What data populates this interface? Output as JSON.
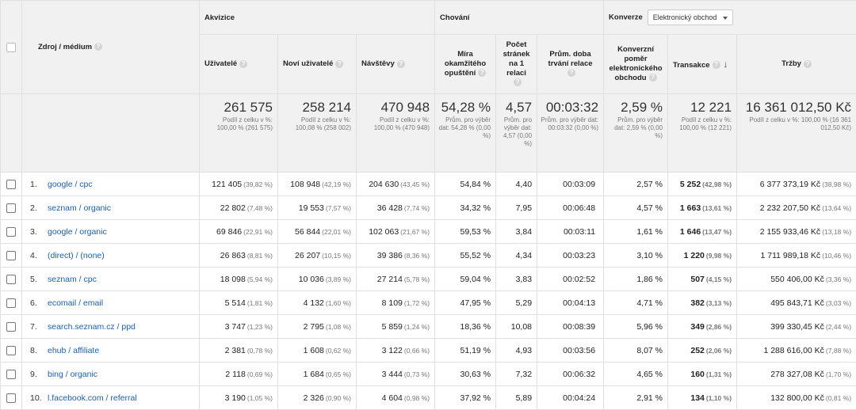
{
  "groups": {
    "acquisition": "Akvizice",
    "behavior": "Chování",
    "conversion": "Konverze",
    "conversion_select": "Elektronický obchod"
  },
  "headers": {
    "source": "Zdroj / médium",
    "users": "Uživatelé",
    "new_users": "Noví uživatelé",
    "sessions": "Návštěvy",
    "bounce": "Míra okamžitého opuštění",
    "pages": "Počet stránek na 1 relaci",
    "duration": "Prům. doba trvání relace",
    "conv_rate": "Konverzní poměr elektronického obchodu",
    "transactions": "Transakce",
    "revenue": "Tržby"
  },
  "totals": {
    "users": {
      "big": "261 575",
      "sub": "Podíl z celku v %: 100,00 % (261 575)"
    },
    "new_users": {
      "big": "258 214",
      "sub": "Podíl z celku v %: 100,08 % (258 002)"
    },
    "sessions": {
      "big": "470 948",
      "sub": "Podíl z celku v %: 100,00 % (470 948)"
    },
    "bounce": {
      "big": "54,28 %",
      "sub": "Prům. pro výběr dat: 54,28 % (0,00 %)"
    },
    "pages": {
      "big": "4,57",
      "sub": "Prům. pro výběr dat: 4,57 (0,00 %)"
    },
    "duration": {
      "big": "00:03:32",
      "sub": "Prům. pro výběr dat: 00:03:32 (0,00 %)"
    },
    "conv_rate": {
      "big": "2,59 %",
      "sub": "Prům. pro výběr dat: 2,59 % (0,00 %)"
    },
    "transactions": {
      "big": "12 221",
      "sub": "Podíl z celku v %: 100,00 % (12 221)"
    },
    "revenue": {
      "big": "16 361 012,50 Kč",
      "sub": "Podíl z celku v %: 100,00 % (16 361 012,50 Kč)"
    }
  },
  "rows": [
    {
      "idx": "1.",
      "source": "google / cpc",
      "users": "121 405",
      "users_pct": "(39,82 %)",
      "new_users": "108 948",
      "new_users_pct": "(42,19 %)",
      "sessions": "204 630",
      "sessions_pct": "(43,45 %)",
      "bounce": "54,84 %",
      "pages": "4,40",
      "duration": "00:03:09",
      "conv_rate": "2,57 %",
      "transactions": "5 252",
      "transactions_pct": "(42,98 %)",
      "revenue": "6 377 373,19 Kč",
      "revenue_pct": "(38,98 %)"
    },
    {
      "idx": "2.",
      "source": "seznam / organic",
      "users": "22 802",
      "users_pct": "(7,48 %)",
      "new_users": "19 553",
      "new_users_pct": "(7,57 %)",
      "sessions": "36 428",
      "sessions_pct": "(7,74 %)",
      "bounce": "34,32 %",
      "pages": "7,95",
      "duration": "00:06:48",
      "conv_rate": "4,57 %",
      "transactions": "1 663",
      "transactions_pct": "(13,61 %)",
      "revenue": "2 232 207,50 Kč",
      "revenue_pct": "(13,64 %)"
    },
    {
      "idx": "3.",
      "source": "google / organic",
      "users": "69 846",
      "users_pct": "(22,91 %)",
      "new_users": "56 844",
      "new_users_pct": "(22,01 %)",
      "sessions": "102 063",
      "sessions_pct": "(21,67 %)",
      "bounce": "59,53 %",
      "pages": "3,84",
      "duration": "00:03:11",
      "conv_rate": "1,61 %",
      "transactions": "1 646",
      "transactions_pct": "(13,47 %)",
      "revenue": "2 155 933,46 Kč",
      "revenue_pct": "(13,18 %)"
    },
    {
      "idx": "4.",
      "source": "(direct) / (none)",
      "users": "26 863",
      "users_pct": "(8,81 %)",
      "new_users": "26 207",
      "new_users_pct": "(10,15 %)",
      "sessions": "39 386",
      "sessions_pct": "(8,36 %)",
      "bounce": "55,52 %",
      "pages": "4,34",
      "duration": "00:03:23",
      "conv_rate": "3,10 %",
      "transactions": "1 220",
      "transactions_pct": "(9,98 %)",
      "revenue": "1 711 989,18 Kč",
      "revenue_pct": "(10,46 %)"
    },
    {
      "idx": "5.",
      "source": "seznam / cpc",
      "users": "18 098",
      "users_pct": "(5,94 %)",
      "new_users": "10 036",
      "new_users_pct": "(3,89 %)",
      "sessions": "27 214",
      "sessions_pct": "(5,78 %)",
      "bounce": "59,04 %",
      "pages": "3,83",
      "duration": "00:02:52",
      "conv_rate": "1,86 %",
      "transactions": "507",
      "transactions_pct": "(4,15 %)",
      "revenue": "550 406,00 Kč",
      "revenue_pct": "(3,36 %)"
    },
    {
      "idx": "6.",
      "source": "ecomail / email",
      "users": "5 514",
      "users_pct": "(1,81 %)",
      "new_users": "4 132",
      "new_users_pct": "(1,60 %)",
      "sessions": "8 109",
      "sessions_pct": "(1,72 %)",
      "bounce": "47,95 %",
      "pages": "5,29",
      "duration": "00:04:13",
      "conv_rate": "4,71 %",
      "transactions": "382",
      "transactions_pct": "(3,13 %)",
      "revenue": "495 843,71 Kč",
      "revenue_pct": "(3,03 %)"
    },
    {
      "idx": "7.",
      "source": "search.seznam.cz / ppd",
      "users": "3 747",
      "users_pct": "(1,23 %)",
      "new_users": "2 795",
      "new_users_pct": "(1,08 %)",
      "sessions": "5 859",
      "sessions_pct": "(1,24 %)",
      "bounce": "18,36 %",
      "pages": "10,08",
      "duration": "00:08:39",
      "conv_rate": "5,96 %",
      "transactions": "349",
      "transactions_pct": "(2,86 %)",
      "revenue": "399 330,45 Kč",
      "revenue_pct": "(2,44 %)"
    },
    {
      "idx": "8.",
      "source": "ehub / affiliate",
      "users": "2 381",
      "users_pct": "(0,78 %)",
      "new_users": "1 608",
      "new_users_pct": "(0,62 %)",
      "sessions": "3 122",
      "sessions_pct": "(0,66 %)",
      "bounce": "51,19 %",
      "pages": "4,93",
      "duration": "00:03:56",
      "conv_rate": "8,07 %",
      "transactions": "252",
      "transactions_pct": "(2,06 %)",
      "revenue": "1 288 616,00 Kč",
      "revenue_pct": "(7,88 %)"
    },
    {
      "idx": "9.",
      "source": "bing / organic",
      "users": "2 118",
      "users_pct": "(0,69 %)",
      "new_users": "1 684",
      "new_users_pct": "(0,65 %)",
      "sessions": "3 444",
      "sessions_pct": "(0,73 %)",
      "bounce": "30,63 %",
      "pages": "7,32",
      "duration": "00:06:32",
      "conv_rate": "4,65 %",
      "transactions": "160",
      "transactions_pct": "(1,31 %)",
      "revenue": "278 327,08 Kč",
      "revenue_pct": "(1,70 %)"
    },
    {
      "idx": "10.",
      "source": "l.facebook.com / referral",
      "users": "3 190",
      "users_pct": "(1,05 %)",
      "new_users": "2 326",
      "new_users_pct": "(0,90 %)",
      "sessions": "4 604",
      "sessions_pct": "(0,98 %)",
      "bounce": "37,92 %",
      "pages": "5,89",
      "duration": "00:04:24",
      "conv_rate": "2,91 %",
      "transactions": "134",
      "transactions_pct": "(1,10 %)",
      "revenue": "132 800,00 Kč",
      "revenue_pct": "(0,81 %)"
    }
  ]
}
